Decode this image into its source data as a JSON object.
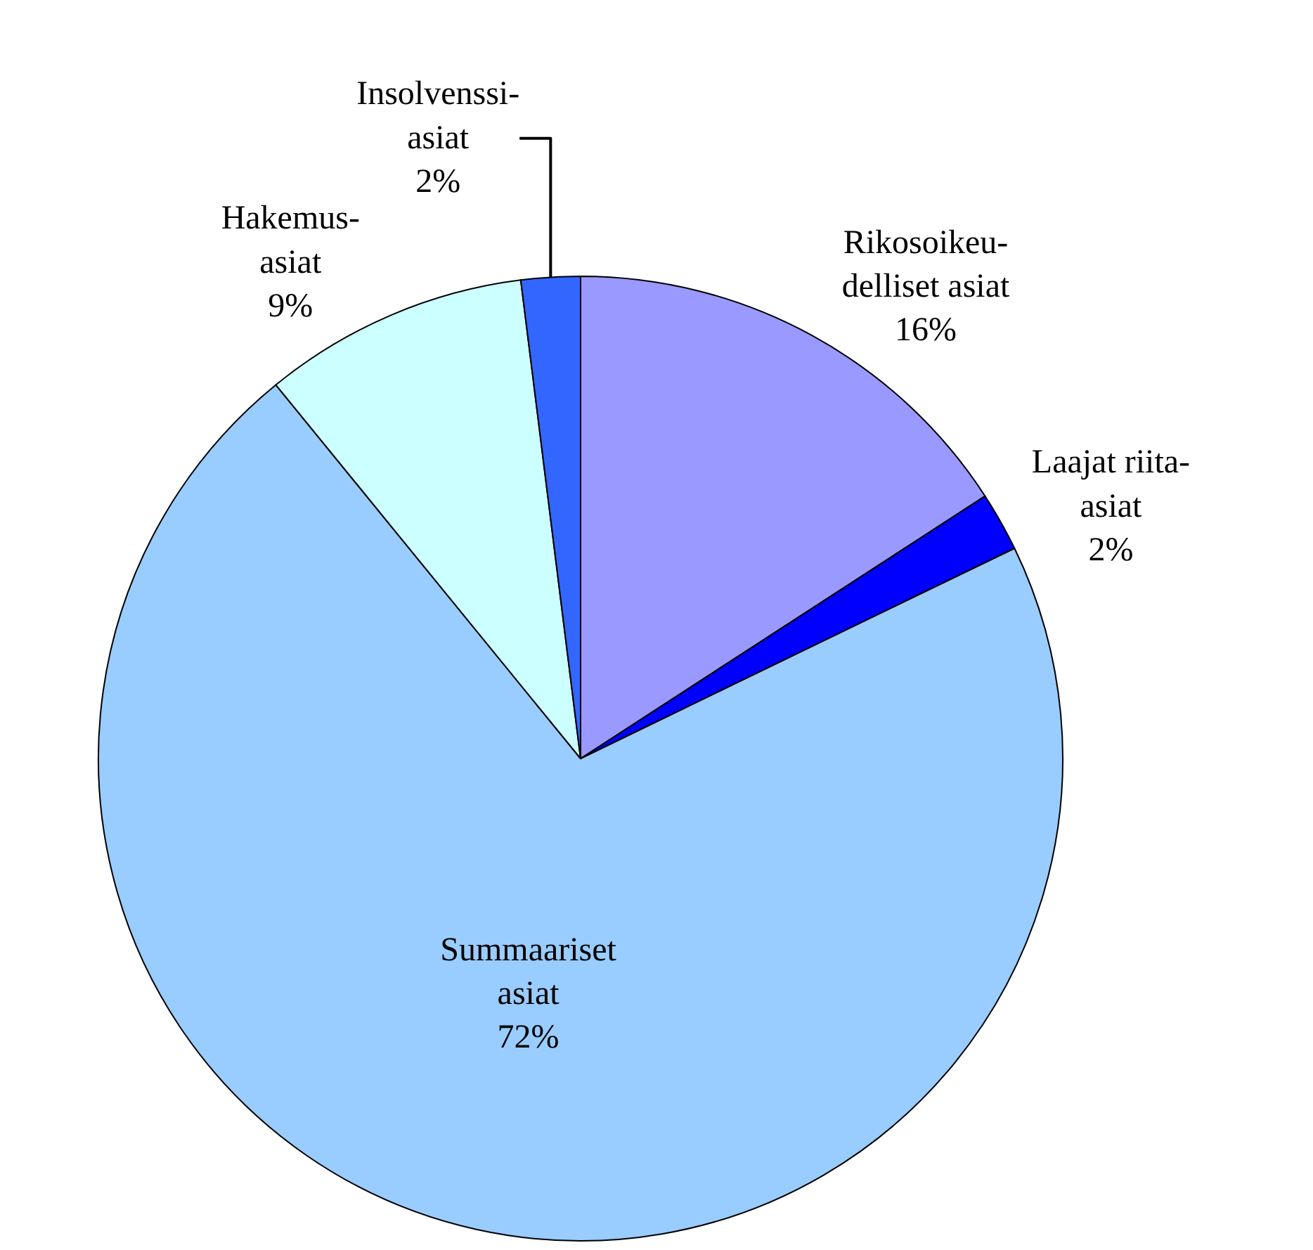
{
  "chart_data": {
    "type": "pie",
    "categories": [
      "Rikosoikeu-\ndelliset asiat",
      "Laajat riita-\nasiat",
      "Summaariset\nasiat",
      "Hakemus-\nasiat",
      "Insolvenssi-\nasiat"
    ],
    "values": [
      16,
      2,
      72,
      9,
      2
    ],
    "value_labels": [
      "16%",
      "2%",
      "72%",
      "9%",
      "2%"
    ],
    "colors": [
      "#9999ff",
      "#0000ff",
      "#99ccff",
      "#ccffff",
      "#3366ff"
    ],
    "legend": false
  }
}
